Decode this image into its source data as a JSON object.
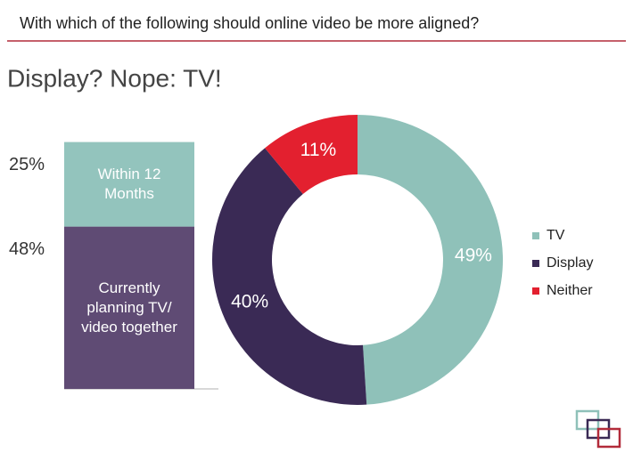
{
  "header": "With which of the following should online video be more aligned?",
  "title": "Display? Nope: TV!",
  "chart_data": [
    {
      "type": "stacked-bar",
      "series": [
        {
          "name": "Currently planning TV/ video together",
          "color": "#5f4b74",
          "values": [
            48
          ],
          "value_labels": [
            "48%"
          ]
        },
        {
          "name": "Within 12 Months",
          "color": "#93c4bd",
          "values": [
            25
          ],
          "value_labels": [
            "25%"
          ]
        }
      ]
    },
    {
      "type": "donut",
      "categories": [
        "TV",
        "Display",
        "Neither"
      ],
      "values": [
        49,
        40,
        11
      ],
      "value_labels": [
        "49%",
        "40%",
        "11%"
      ],
      "colors": [
        "#8fc1b9",
        "#3a2a55",
        "#e3202f"
      ],
      "legend": "right"
    }
  ]
}
